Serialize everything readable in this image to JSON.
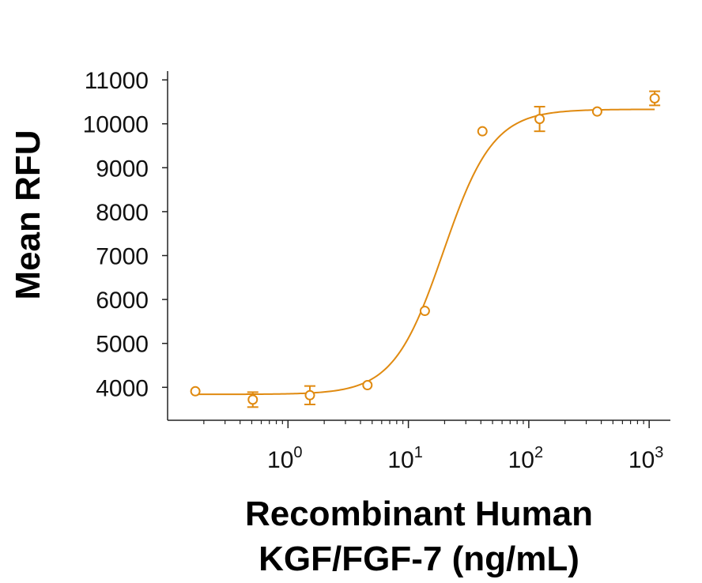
{
  "chart_data": {
    "type": "scatter",
    "title": "",
    "xlabel_lines": [
      "Recombinant Human",
      "KGF/FGF-7 (ng/mL)"
    ],
    "ylabel": "Mean RFU",
    "x_scale": "log",
    "xlim": [
      0.1,
      1500
    ],
    "ylim": [
      3250,
      11200
    ],
    "y_ticks": [
      4000,
      5000,
      6000,
      7000,
      8000,
      9000,
      10000,
      11000
    ],
    "x_ticks": [
      {
        "value": 1,
        "base": "10",
        "exp": "0"
      },
      {
        "value": 10,
        "base": "10",
        "exp": "1"
      },
      {
        "value": 100,
        "base": "10",
        "exp": "2"
      },
      {
        "value": 1000,
        "base": "10",
        "exp": "3"
      }
    ],
    "series": [
      {
        "color": "#E08A10",
        "points": [
          {
            "x": 0.17,
            "y": 3910,
            "err": 0
          },
          {
            "x": 0.51,
            "y": 3720,
            "err": 170
          },
          {
            "x": 1.52,
            "y": 3820,
            "err": 210
          },
          {
            "x": 4.57,
            "y": 4050,
            "err": 0
          },
          {
            "x": 13.7,
            "y": 5740,
            "err": 0
          },
          {
            "x": 41.2,
            "y": 9830,
            "err": 0
          },
          {
            "x": 123,
            "y": 10110,
            "err": 280
          },
          {
            "x": 370,
            "y": 10280,
            "err": 0
          },
          {
            "x": 1111,
            "y": 10580,
            "err": 160
          }
        ],
        "fit": {
          "bottom": 3840,
          "top": 10330,
          "ec50": 19.5,
          "hill": 2.1
        }
      }
    ],
    "grid": false,
    "legend": "none"
  }
}
